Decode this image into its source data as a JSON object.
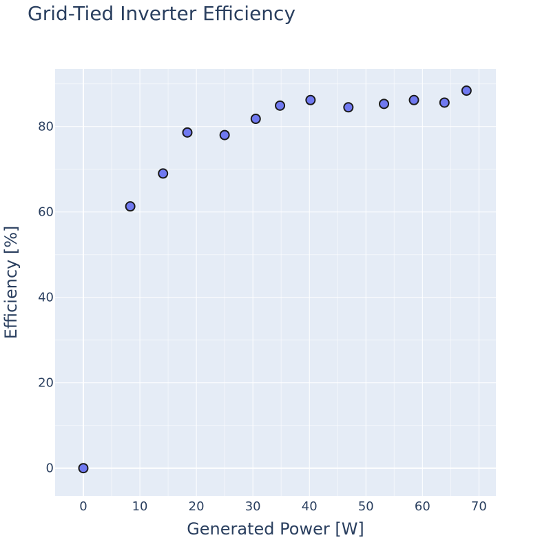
{
  "chart_data": {
    "type": "scatter",
    "title": "Grid-Tied Inverter Efficiency",
    "xlabel": "Generated Power [W]",
    "ylabel": "Efficiency [%]",
    "xlim": [
      -5,
      73
    ],
    "ylim": [
      -6.5,
      93.5
    ],
    "xticks": [
      0,
      10,
      20,
      30,
      40,
      50,
      60,
      70
    ],
    "yticks": [
      0,
      20,
      40,
      60,
      80
    ],
    "grid": true,
    "marker_color": "#7079f0",
    "marker_edge_color": "#1a1a1a",
    "plot_bg": "#e5ecf6",
    "grid_color": "#ffffff",
    "x": [
      0,
      8.3,
      14.1,
      18.4,
      25.0,
      30.5,
      34.8,
      40.2,
      46.9,
      53.2,
      58.5,
      63.9,
      67.8
    ],
    "y": [
      0,
      61.3,
      69.0,
      78.6,
      78.0,
      81.8,
      84.9,
      86.2,
      84.5,
      85.3,
      86.2,
      85.6,
      88.4
    ]
  }
}
